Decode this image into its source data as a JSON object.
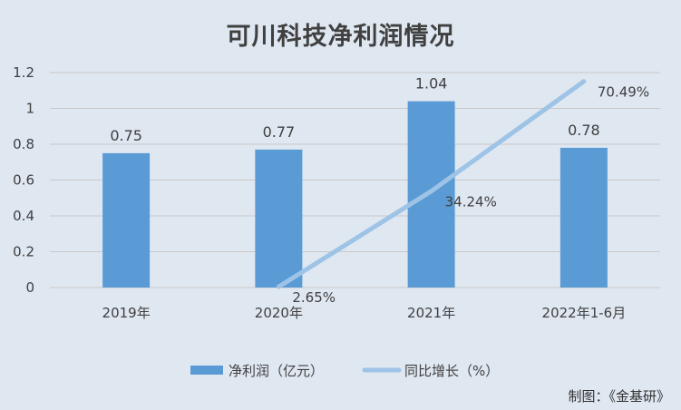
{
  "chart_data": {
    "type": "bar",
    "title": "可川科技净利润情况",
    "categories": [
      "2019年",
      "2020年",
      "2021年",
      "2022年1-6月"
    ],
    "ylim": [
      0,
      1.2
    ],
    "yticks": [
      "0",
      "0.2",
      "0.4",
      "0.6",
      "0.8",
      "1",
      "1.2"
    ],
    "grid": true,
    "legend_position": "bottom",
    "series": [
      {
        "name": "净利润（亿元）",
        "kind": "bar",
        "color": "#5b9bd5",
        "values": [
          0.75,
          0.77,
          1.04,
          0.78
        ],
        "labels": [
          "0.75",
          "0.77",
          "1.04",
          "0.78"
        ]
      },
      {
        "name": "同比增长（%）",
        "kind": "line",
        "color": "#9dc3e6",
        "values": [
          null,
          2.65,
          34.24,
          70.49
        ],
        "labels": [
          "",
          "2.65%",
          "34.24%",
          "70.49%"
        ]
      }
    ]
  },
  "credit": "制图：《金基研》"
}
